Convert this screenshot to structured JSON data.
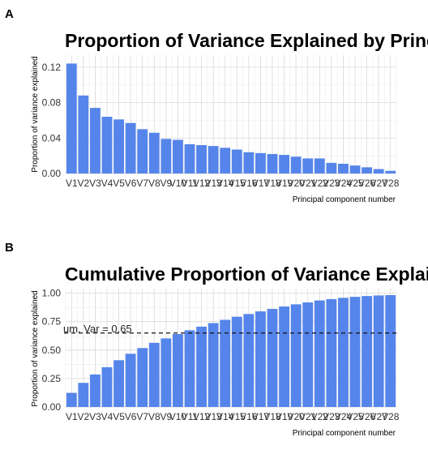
{
  "chart_data": [
    {
      "type": "bar",
      "panel": "A",
      "title": "Proportion of Variance Explained by Principal C",
      "xlabel": "Principal component number",
      "ylabel": "Proportion of variance explained",
      "categories": [
        "V1",
        "V2",
        "V3",
        "V4",
        "V5",
        "V6",
        "V7",
        "V8",
        "V9",
        "V10",
        "V11",
        "V12",
        "V13",
        "V14",
        "V15",
        "V16",
        "V17",
        "V18",
        "V19",
        "V20",
        "V21",
        "V22",
        "V23",
        "V24",
        "V25",
        "V26",
        "V27",
        "V28"
      ],
      "values": [
        0.124,
        0.088,
        0.074,
        0.064,
        0.061,
        0.057,
        0.05,
        0.046,
        0.039,
        0.038,
        0.033,
        0.032,
        0.031,
        0.029,
        0.027,
        0.024,
        0.023,
        0.022,
        0.021,
        0.019,
        0.017,
        0.017,
        0.012,
        0.011,
        0.009,
        0.007,
        0.005,
        0.003
      ],
      "ylim": [
        0,
        0.125
      ],
      "yticks": [
        "0.00",
        "0.04",
        "0.08",
        "0.12"
      ],
      "ytick_values": [
        0,
        0.04,
        0.08,
        0.12
      ],
      "grid": true,
      "bar_color": "#5585ea"
    },
    {
      "type": "bar",
      "panel": "B",
      "title": "Cumulative Proportion of Variance Explained by",
      "xlabel": "Principal component number",
      "ylabel": "Proportion of variance explained",
      "categories": [
        "V1",
        "V2",
        "V3",
        "V4",
        "V5",
        "V6",
        "V7",
        "V8",
        "V9",
        "V10",
        "V11",
        "V12",
        "V13",
        "V14",
        "V15",
        "V16",
        "V17",
        "V18",
        "V19",
        "V20",
        "V21",
        "V22",
        "V23",
        "V24",
        "V25",
        "V26",
        "V27",
        "V28"
      ],
      "values": [
        0.124,
        0.212,
        0.286,
        0.35,
        0.411,
        0.468,
        0.518,
        0.564,
        0.603,
        0.641,
        0.674,
        0.706,
        0.737,
        0.766,
        0.793,
        0.817,
        0.84,
        0.862,
        0.883,
        0.902,
        0.919,
        0.936,
        0.948,
        0.959,
        0.968,
        0.975,
        0.98,
        0.983
      ],
      "ylim": [
        0,
        1.0
      ],
      "yticks": [
        "0.00",
        "0.25",
        "0.50",
        "0.75",
        "1.00"
      ],
      "ytick_values": [
        0,
        0.25,
        0.5,
        0.75,
        1.0
      ],
      "grid": true,
      "bar_color": "#5585ea",
      "hline": {
        "y": 0.65,
        "label": "um. Var = 0.65",
        "style": "dashed"
      }
    }
  ]
}
